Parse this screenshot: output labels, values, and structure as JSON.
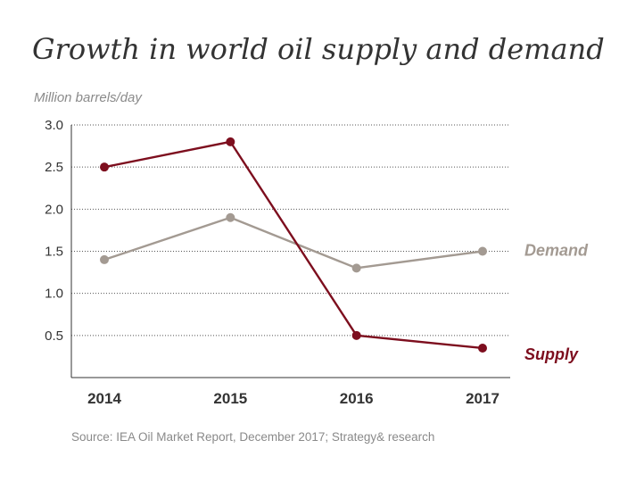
{
  "chart_data": {
    "type": "line",
    "title": "Growth in world oil supply and demand",
    "ylabel": "Million barrels/day",
    "source": "Source: IEA Oil Market Report, December 2017; Strategy& research",
    "x": [
      "2014",
      "2015",
      "2016",
      "2017"
    ],
    "ylim": [
      0.0,
      3.0
    ],
    "yticks": [
      "3.0",
      "2.5",
      "2.0",
      "1.5",
      "1.0",
      "0.5"
    ],
    "ytick_values": [
      3.0,
      2.5,
      2.0,
      1.5,
      1.0,
      0.5
    ],
    "grid": "horizontal-dotted",
    "series": [
      {
        "name": "Demand",
        "values": [
          1.4,
          1.9,
          1.3,
          1.5
        ],
        "color": "#a39a92"
      },
      {
        "name": "Supply",
        "values": [
          2.5,
          2.8,
          0.5,
          0.35
        ],
        "color": "#7d0e1e"
      }
    ]
  }
}
